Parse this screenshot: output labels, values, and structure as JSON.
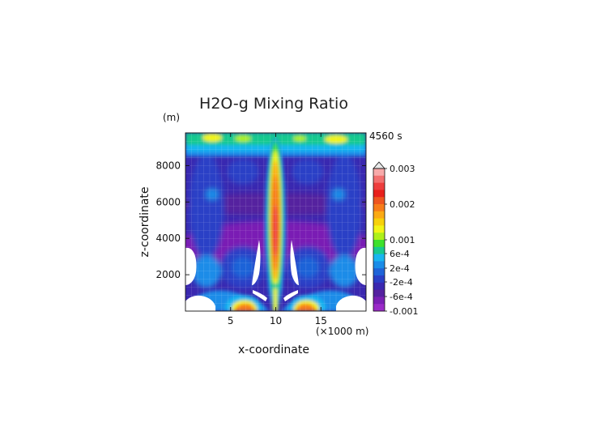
{
  "chart_data": {
    "type": "heatmap",
    "title": "H2O-g Mixing Ratio",
    "time_label": "4560 s",
    "xlabel": "x-coordinate",
    "x_unit": "(×1000 m)",
    "ylabel": "z-coordinate",
    "y_unit": "(m)",
    "xlim": [
      0,
      20
    ],
    "ylim": [
      0,
      9800
    ],
    "x_ticks": [
      5,
      10,
      15
    ],
    "y_ticks": [
      2000,
      4000,
      6000,
      8000
    ],
    "grid": true,
    "colorbar": {
      "position": "right",
      "labels": [
        "0.003",
        "0.002",
        "0.001",
        "6e-4",
        "2e-4",
        "-2e-4",
        "-6e-4",
        "-0.001"
      ],
      "colors": [
        "#f7aaaa",
        "#f27070",
        "#ee3e3e",
        "#e8201c",
        "#ee5520",
        "#f77c1a",
        "#fbaa14",
        "#f7d10a",
        "#f2f416",
        "#aef01a",
        "#3ee12c",
        "#18c98f",
        "#19b6f0",
        "#1a8ce8",
        "#1f63d8",
        "#2a3fc6",
        "#3a28b0",
        "#55219f",
        "#7a1fb4",
        "#9a2ac8"
      ]
    }
  }
}
